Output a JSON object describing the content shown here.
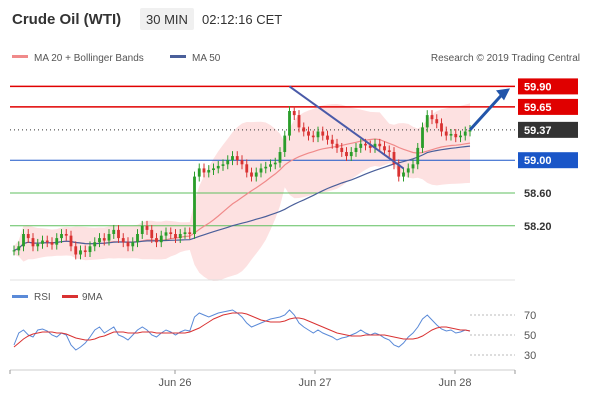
{
  "header": {
    "title": "Crude Oil (WTI)",
    "timeframe": "30 MIN",
    "time": "02:12:16 CET"
  },
  "legend": {
    "ma20_label": "MA 20 + Bollinger Bands",
    "ma50_label": "MA 50",
    "research_label": "Research © 2019 Trading Central",
    "rsi_label": "RSI",
    "ma9_label": "9MA"
  },
  "colors": {
    "resistance": "#e00000",
    "support": "#1a56c8",
    "pivot": "#d9001b",
    "support_green": "#5fbf5f",
    "current_price_bg": "#333333",
    "bullish_candle": "#2a9d2a",
    "bearish_candle": "#d93232",
    "ma20": "#f08a8a",
    "ma50": "#4a5f9a",
    "bollinger_fill": "#fde1e1",
    "trendline": "#4a5aa8",
    "arrow": "#2255aa",
    "rsi_line": "#5a8ad8",
    "ma9_line": "#d93232"
  },
  "chart_data": [
    {
      "type": "line",
      "title": "Crude Oil (WTI) 30 MIN",
      "ylim": [
        57.6,
        60.1
      ],
      "x_labels": [
        "Jun 26",
        "Jun 27",
        "Jun 28"
      ],
      "levels": [
        {
          "value": 59.9,
          "label": "59.90",
          "kind": "resistance"
        },
        {
          "value": 59.65,
          "label": "59.65",
          "kind": "resistance"
        },
        {
          "value": 59.37,
          "label": "59.37",
          "kind": "current"
        },
        {
          "value": 59.0,
          "label": "59.00",
          "kind": "pivot"
        },
        {
          "value": 58.6,
          "label": "58.60",
          "kind": "support"
        },
        {
          "value": 58.2,
          "label": "58.20",
          "kind": "support"
        }
      ],
      "series": [
        {
          "name": "Price",
          "values": [
            57.9,
            57.95,
            58.1,
            58.05,
            57.95,
            57.98,
            58.02,
            58.0,
            57.97,
            58.05,
            58.1,
            58.08,
            57.95,
            57.85,
            57.9,
            57.88,
            57.95,
            58.0,
            58.05,
            58.02,
            58.1,
            58.15,
            58.05,
            58.0,
            57.95,
            58.0,
            58.1,
            58.2,
            58.15,
            58.05,
            58.0,
            58.08,
            58.12,
            58.1,
            58.05,
            58.1,
            58.12,
            58.1,
            58.8,
            58.9,
            58.85,
            58.88,
            58.9,
            58.93,
            58.95,
            59.0,
            59.05,
            59.0,
            58.95,
            58.85,
            58.8,
            58.85,
            58.9,
            58.92,
            58.95,
            58.97,
            59.1,
            59.3,
            59.6,
            59.55,
            59.4,
            59.35,
            59.3,
            59.28,
            59.35,
            59.3,
            59.25,
            59.2,
            59.15,
            59.1,
            59.05,
            59.1,
            59.15,
            59.2,
            59.18,
            59.15,
            59.2,
            59.17,
            59.12,
            59.1,
            58.95,
            58.8,
            58.85,
            58.9,
            58.95,
            59.15,
            59.4,
            59.55,
            59.5,
            59.45,
            59.35,
            59.3,
            59.32,
            59.28,
            59.3,
            59.35,
            59.37
          ]
        }
      ]
    },
    {
      "type": "line",
      "title": "RSI",
      "ylim": [
        20,
        80
      ],
      "y_ticks": [
        70,
        50,
        30
      ],
      "x_labels": [
        "Jun 26",
        "Jun 27",
        "Jun 28"
      ],
      "series": [
        {
          "name": "RSI",
          "values": [
            40,
            52,
            55,
            50,
            48,
            55,
            56,
            54,
            50,
            48,
            52,
            50,
            40,
            35,
            38,
            42,
            48,
            55,
            58,
            52,
            55,
            58,
            50,
            48,
            45,
            50,
            55,
            58,
            55,
            50,
            48,
            52,
            55,
            53,
            50,
            53,
            55,
            54,
            68,
            72,
            70,
            68,
            70,
            72,
            73,
            74,
            75,
            72,
            68,
            62,
            58,
            60,
            62,
            64,
            66,
            67,
            68,
            70,
            75,
            70,
            62,
            58,
            55,
            52,
            55,
            52,
            50,
            48,
            45,
            47,
            48,
            50,
            52,
            55,
            52,
            50,
            52,
            50,
            47,
            45,
            40,
            38,
            42,
            48,
            52,
            58,
            66,
            70,
            65,
            60,
            56,
            54,
            55,
            52,
            53,
            55,
            54
          ]
        },
        {
          "name": "9MA",
          "values": [
            38,
            42,
            46,
            49,
            51,
            52,
            53,
            53,
            53,
            52,
            52,
            51,
            49,
            47,
            46,
            45,
            45,
            46,
            48,
            49,
            51,
            53,
            53,
            53,
            52,
            52,
            52,
            53,
            53,
            53,
            52,
            52,
            52,
            52,
            52,
            52,
            52,
            53,
            55,
            57,
            60,
            63,
            66,
            68,
            70,
            71,
            72,
            72,
            72,
            71,
            69,
            67,
            65,
            64,
            63,
            63,
            63,
            64,
            66,
            67,
            67,
            66,
            64,
            62,
            60,
            58,
            56,
            54,
            52,
            51,
            50,
            49,
            49,
            49,
            50,
            50,
            50,
            50,
            50,
            49,
            48,
            47,
            46,
            46,
            46,
            47,
            49,
            52,
            55,
            57,
            58,
            58,
            57,
            56,
            55,
            55,
            54
          ]
        }
      ]
    }
  ]
}
